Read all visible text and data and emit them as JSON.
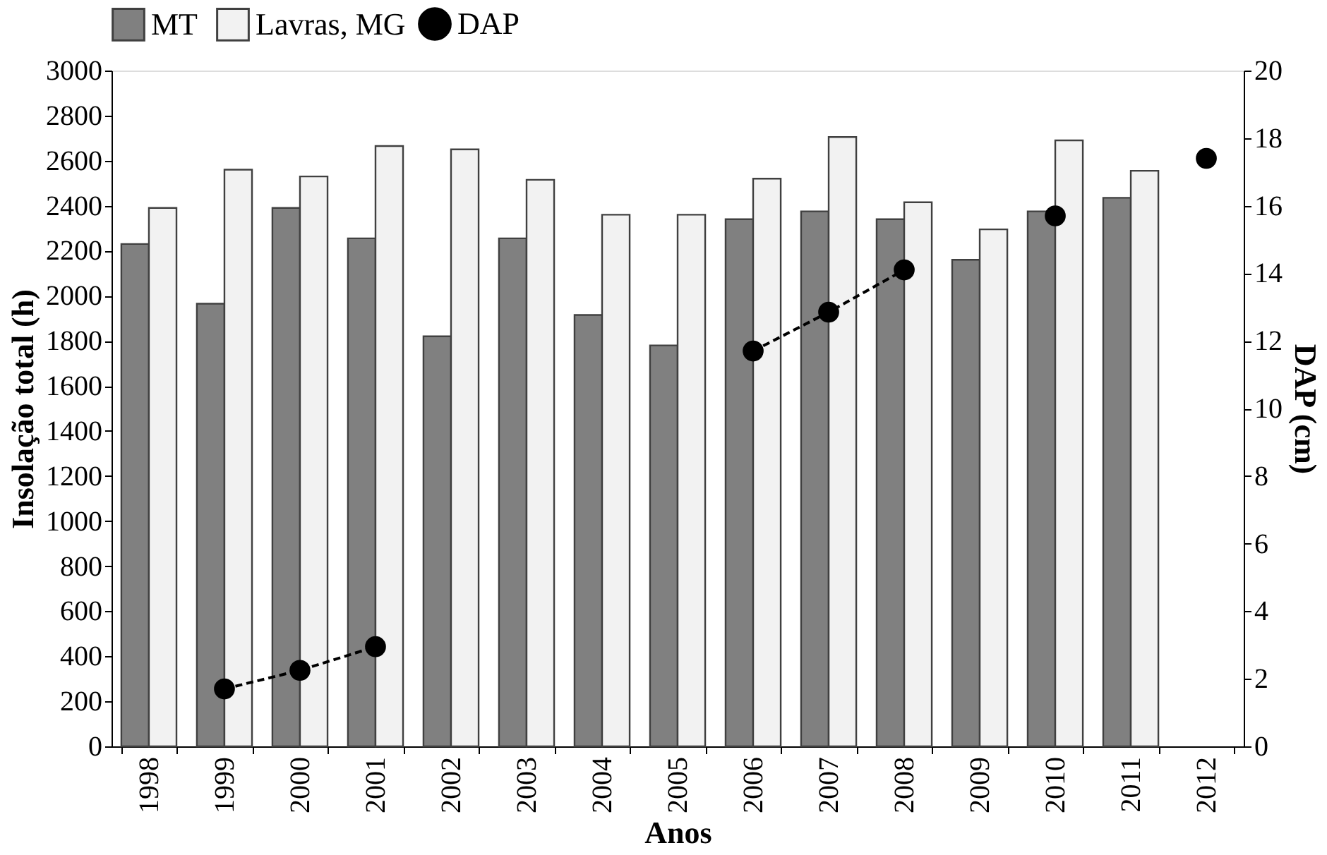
{
  "chart_data": {
    "type": "bar",
    "xlabel": "Anos",
    "ylabel": "Insolação total (h)",
    "y2label": "DAP (cm)",
    "categories": [
      "1998",
      "1999",
      "2000",
      "2001",
      "2002",
      "2003",
      "2004",
      "2005",
      "2006",
      "2007",
      "2008",
      "2009",
      "2010",
      "2011",
      "2012"
    ],
    "series": [
      {
        "name": "MT",
        "color": "#808080",
        "values": [
          2230,
          1965,
          2390,
          2255,
          1820,
          2255,
          1915,
          1780,
          2340,
          2375,
          2340,
          2160,
          2375,
          2435,
          null
        ]
      },
      {
        "name": "Lavras, MG",
        "color": "#f2f2f2",
        "values": [
          2390,
          2560,
          2530,
          2665,
          2650,
          2515,
          2360,
          2360,
          2520,
          2705,
          2415,
          2295,
          2690,
          2555,
          null
        ]
      },
      {
        "name": "DAP",
        "type": "line",
        "axis": "y2",
        "color": "#000000",
        "marker": "circle",
        "line_style": "dashed",
        "values": [
          null,
          1.7,
          2.25,
          2.95,
          null,
          null,
          null,
          null,
          11.7,
          12.85,
          14.1,
          null,
          15.7,
          null,
          17.4
        ]
      }
    ],
    "ylim": [
      0,
      3000
    ],
    "yticks": [
      0,
      200,
      400,
      600,
      800,
      1000,
      1200,
      1400,
      1600,
      1800,
      2000,
      2200,
      2400,
      2600,
      2800,
      3000
    ],
    "y2lim": [
      0,
      20
    ],
    "y2ticks": [
      0,
      2,
      4,
      6,
      8,
      10,
      12,
      14,
      16,
      18,
      20
    ],
    "grid": false,
    "legend": "top"
  }
}
